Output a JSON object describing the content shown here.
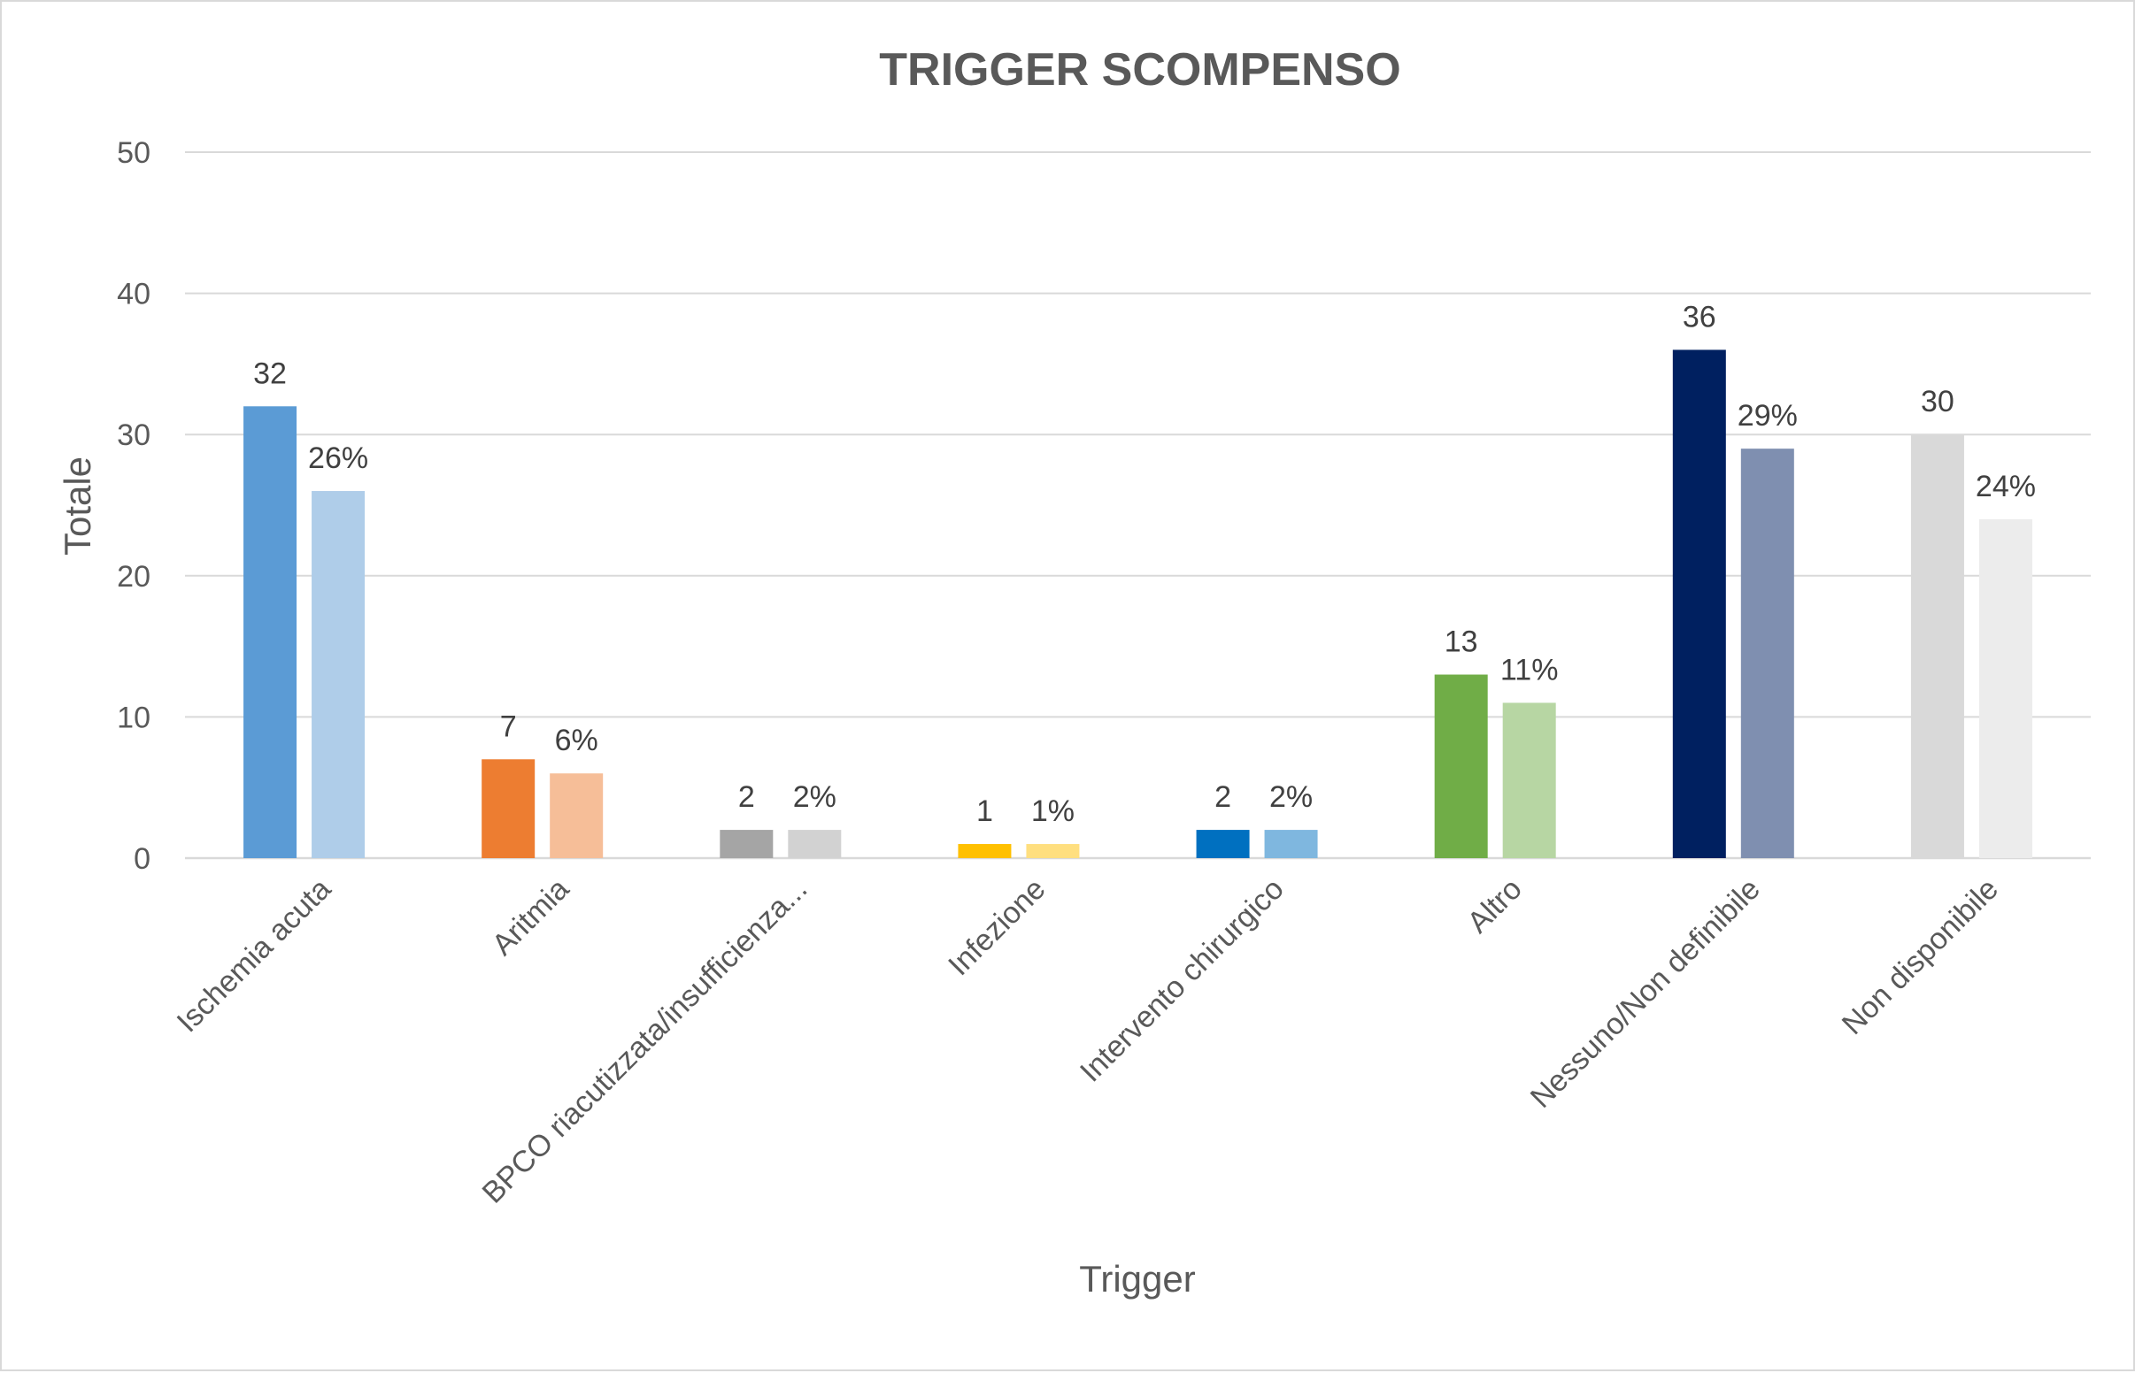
{
  "chart_data": {
    "type": "bar",
    "title": "TRIGGER SCOMPENSO",
    "xlabel": "Trigger",
    "ylabel": "Totale",
    "ylim": [
      0,
      50
    ],
    "yticks": [
      0,
      10,
      20,
      30,
      40,
      50
    ],
    "grid": true,
    "legend": "none",
    "categories": [
      "Ischemia acuta",
      "Aritmia",
      "BPCO riacutizzata/insufficienza...",
      "Infezione",
      "Intervento chirurgico",
      "Altro",
      "Nessuno/Non definibile",
      "Non disponibile"
    ],
    "series": [
      {
        "values": [
          32,
          7,
          2,
          1,
          2,
          13,
          36,
          30
        ],
        "labels": [
          "32",
          "7",
          "2",
          "1",
          "2",
          "13",
          "36",
          "30"
        ],
        "colors": [
          "#5b9bd5",
          "#ed7d31",
          "#a5a5a5",
          "#ffc000",
          "#0070c0",
          "#70ad47",
          "#002060",
          "#d9d9d9"
        ]
      },
      {
        "values": [
          26,
          6,
          2,
          1,
          2,
          11,
          29,
          24
        ],
        "labels": [
          "26%",
          "6%",
          "2%",
          "1%",
          "2%",
          "11%",
          "29%",
          "24%"
        ],
        "colors": [
          "#afcde9",
          "#f6be98",
          "#d2d2d2",
          "#ffdf7f",
          "#7fb7df",
          "#b7d6a3",
          "#7f8fb0",
          "#ececec"
        ]
      }
    ]
  }
}
